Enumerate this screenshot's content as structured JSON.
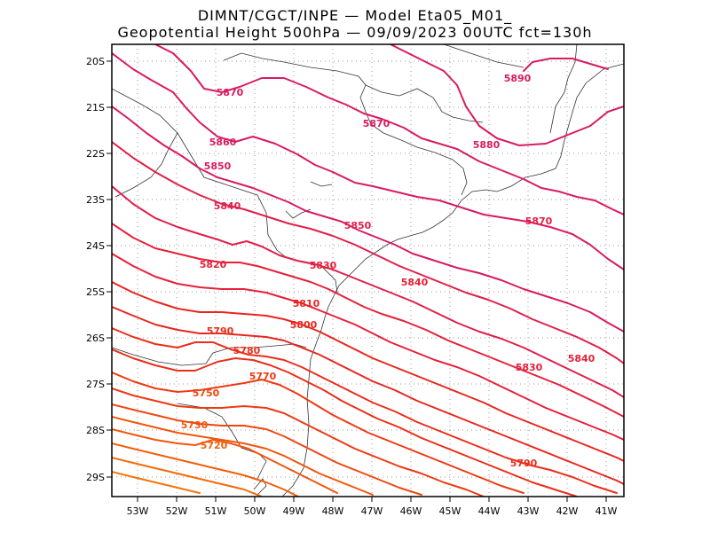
{
  "title": {
    "line1": "DIMNT/CGCT/INPE —  Model Eta05_M01_",
    "line2": "Geopotential Height 500hPa —  09/09/2023 00UTC fct=130h"
  },
  "map": {
    "lon_range": [
      -53.6,
      -40.5
    ],
    "lat_range": [
      -29.4,
      -19.8
    ],
    "lat_ticks": [
      "20S",
      "21S",
      "22S",
      "23S",
      "24S",
      "25S",
      "26S",
      "27S",
      "28S",
      "29S"
    ],
    "lon_ticks": [
      "53W",
      "52W",
      "51W",
      "50W",
      "49W",
      "48W",
      "47W",
      "46W",
      "45W",
      "44W",
      "43W",
      "42W",
      "41W"
    ],
    "grid": "dotted",
    "coastline": "thin black"
  },
  "contour_labels": [
    {
      "text": "5870",
      "color": "#d81b60"
    },
    {
      "text": "5870",
      "color": "#d81b60"
    },
    {
      "text": "5890",
      "color": "#d81b60"
    },
    {
      "text": "5860",
      "color": "#d81b60"
    },
    {
      "text": "5880",
      "color": "#d81b60"
    },
    {
      "text": "5850",
      "color": "#d81b60"
    },
    {
      "text": "5840",
      "color": "#e01f4a"
    },
    {
      "text": "5850",
      "color": "#e01f4a"
    },
    {
      "text": "5870",
      "color": "#e01f4a"
    },
    {
      "text": "5820",
      "color": "#e6203a"
    },
    {
      "text": "5830",
      "color": "#e6203a"
    },
    {
      "text": "5840",
      "color": "#e6203a"
    },
    {
      "text": "5810",
      "color": "#e8261f"
    },
    {
      "text": "5800",
      "color": "#e8261f"
    },
    {
      "text": "5790",
      "color": "#ea2e1a"
    },
    {
      "text": "5780",
      "color": "#ea2e1a"
    },
    {
      "text": "5830",
      "color": "#e6203a"
    },
    {
      "text": "5840",
      "color": "#e6203a"
    },
    {
      "text": "5770",
      "color": "#ec3a14"
    },
    {
      "text": "5750",
      "color": "#ee4810"
    },
    {
      "text": "5730",
      "color": "#f0560c"
    },
    {
      "text": "5720",
      "color": "#f25e0a"
    },
    {
      "text": "5790",
      "color": "#ea2e1a"
    }
  ]
}
